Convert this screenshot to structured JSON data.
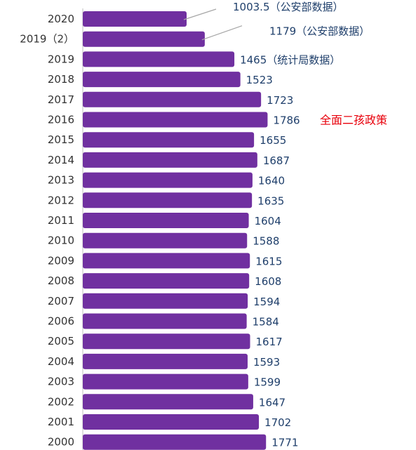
{
  "chart_data": {
    "type": "bar",
    "orientation": "horizontal",
    "categories": [
      "2020",
      "2019（2）",
      "2019",
      "2018",
      "2017",
      "2016",
      "2015",
      "2014",
      "2013",
      "2012",
      "2011",
      "2010",
      "2009",
      "2008",
      "2007",
      "2006",
      "2005",
      "2004",
      "2003",
      "2002",
      "2001",
      "2000"
    ],
    "value_labels": [
      "1003.5（公安部数据）",
      "1179（公安部数据）",
      "1465（统计局数据）",
      "1523",
      "1723",
      "1786",
      "1655",
      "1687",
      "1640",
      "1635",
      "1604",
      "1588",
      "1615",
      "1608",
      "1594",
      "1584",
      "1617",
      "1593",
      "1599",
      "1647",
      "1702",
      "1771"
    ],
    "values": [
      1003.5,
      1179,
      1465,
      1523,
      1723,
      1786,
      1655,
      1687,
      1640,
      1635,
      1604,
      1588,
      1615,
      1608,
      1594,
      1584,
      1617,
      1593,
      1599,
      1647,
      1702,
      1771
    ],
    "bar_color": "#7030a0",
    "annotation": {
      "text": "全面二孩政策",
      "category": "2016",
      "color": "#e8000b"
    },
    "leader_lines": [
      "2020",
      "2019（2）"
    ],
    "title": "",
    "xlabel": "",
    "ylabel": ""
  }
}
